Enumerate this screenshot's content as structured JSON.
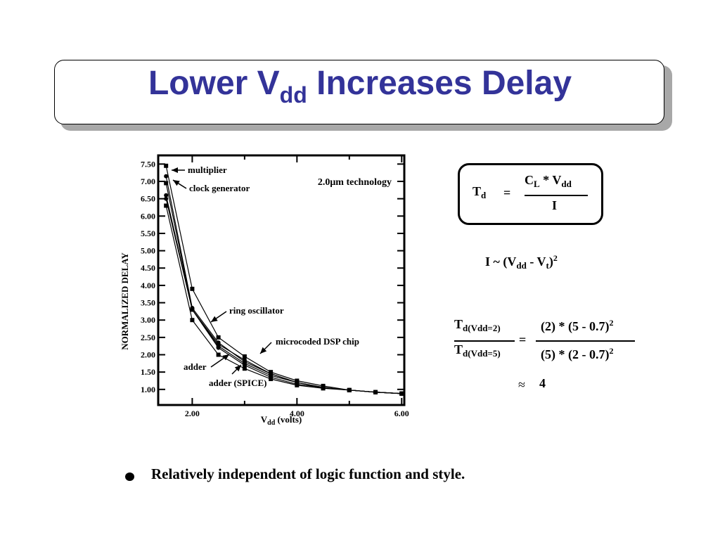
{
  "title": {
    "main": "Lower V",
    "sub": "dd",
    "rest": " Increases Delay"
  },
  "chart_data": {
    "type": "line",
    "ylabel": "NORMALIZED DELAY",
    "xlabel": "V",
    "xlabel_sub": "dd",
    "xlabel_rest": " (volts)",
    "xlim": [
      1.35,
      6.05
    ],
    "ylim": [
      0.55,
      7.75
    ],
    "xticks": [
      "2.00",
      "4.00",
      "6.00"
    ],
    "xtick_values": [
      2.0,
      4.0,
      6.0
    ],
    "yticks": [
      "1.00",
      "1.50",
      "2.00",
      "2.50",
      "3.00",
      "3.50",
      "4.00",
      "4.50",
      "5.00",
      "5.50",
      "6.00",
      "6.50",
      "7.00",
      "7.50"
    ],
    "ytick_values": [
      1.0,
      1.5,
      2.0,
      2.5,
      3.0,
      3.5,
      4.0,
      4.5,
      5.0,
      5.5,
      6.0,
      6.5,
      7.0,
      7.5
    ],
    "technology_note": "2.0μm technology",
    "series": [
      {
        "name": "multiplier",
        "x": [
          1.5,
          2.0,
          2.5,
          3.0,
          3.5,
          4.0,
          4.5,
          5.0,
          5.5,
          6.0
        ],
        "y": [
          7.45,
          3.9,
          2.5,
          1.95,
          1.5,
          1.25,
          1.1,
          0.98,
          0.92,
          0.88
        ]
      },
      {
        "name": "clock generator",
        "x": [
          1.5,
          2.0,
          2.5,
          3.0,
          3.5,
          4.0,
          4.5,
          5.0,
          5.5,
          6.0
        ],
        "y": [
          7.15,
          3.35,
          2.35,
          1.8,
          1.45,
          1.2,
          1.05,
          0.98,
          0.92,
          0.88
        ]
      },
      {
        "name": "ring oscillator",
        "x": [
          1.5,
          2.0,
          2.5,
          3.0,
          3.5,
          4.0,
          4.5,
          5.0,
          5.5,
          6.0
        ],
        "y": [
          6.95,
          3.3,
          2.25,
          1.75,
          1.4,
          1.2,
          1.05,
          0.98,
          0.92,
          0.88
        ]
      },
      {
        "name": "microcoded DSP chip",
        "x": [
          1.5,
          2.0,
          2.5,
          3.0,
          3.5,
          4.0,
          4.5,
          5.0,
          5.5,
          6.0
        ],
        "y": [
          6.5,
          3.3,
          2.2,
          1.7,
          1.35,
          1.15,
          1.05,
          0.98,
          0.92,
          0.88
        ]
      },
      {
        "name": "adder",
        "x": [
          1.5,
          2.0,
          2.5,
          3.0,
          3.5,
          4.0,
          4.5,
          5.0,
          5.5,
          6.0
        ],
        "y": [
          6.3,
          3.0,
          2.0,
          1.6,
          1.3,
          1.12,
          1.03,
          0.98,
          0.92,
          0.88
        ]
      },
      {
        "name": "adder (SPICE)",
        "x": [
          1.5,
          2.0,
          2.5,
          3.0,
          3.5,
          4.0,
          4.5,
          5.0,
          5.5,
          6.0
        ],
        "y": [
          6.6,
          3.3,
          2.3,
          1.85,
          1.45,
          1.2,
          1.06,
          0.98,
          0.92,
          0.88
        ]
      }
    ],
    "annotations": [
      "multiplier",
      "clock generator",
      "ring oscillator",
      "microcoded DSP chip",
      "adder",
      "adder (SPICE)"
    ]
  },
  "formulas": {
    "td_lhs": "T",
    "td_lhs_sub": "d",
    "equals": "=",
    "td_num_c": "C",
    "td_num_c_sub": "L",
    "td_num_mid": " * V",
    "td_num_v_sub": "dd",
    "td_den": "I",
    "current_prefix": "I ~ (V",
    "current_sub1": "dd",
    "current_mid": " - V",
    "current_sub2": "t",
    "current_close": ")",
    "current_sup": "2",
    "ratio_num": "T",
    "ratio_num_sub": "d(Vdd=2)",
    "ratio_den": "T",
    "ratio_den_sub": "d(Vdd=5)",
    "ratio_eq": "=",
    "ratio_rhs_num": "(2) * (5 - 0.7)",
    "ratio_rhs_num_sup": "2",
    "ratio_rhs_den": "(5) * (2 - 0.7)",
    "ratio_rhs_den_sup": "2",
    "approx_symbol": "≈",
    "approx_value": "4"
  },
  "bullet": {
    "text": "Relatively independent of logic function and style."
  }
}
